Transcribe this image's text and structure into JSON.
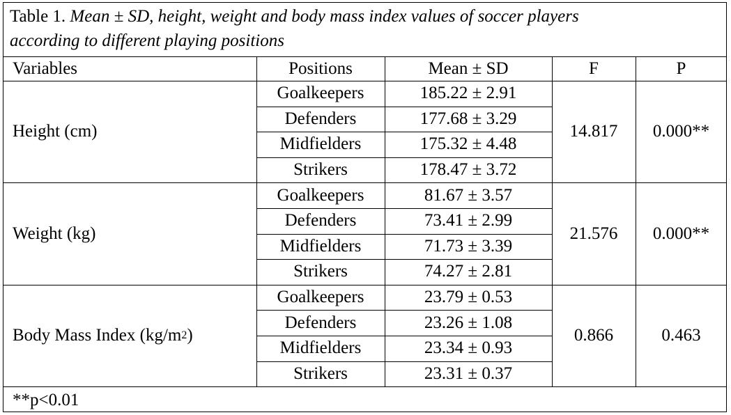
{
  "table": {
    "caption": {
      "label": "Table 1.",
      "text": "Mean ± SD, height, weight and body mass index values of soccer players according to different playing positions",
      "line1": "Mean ± SD, height, weight and body mass index values of soccer players",
      "line2": "according to different playing positions"
    },
    "headers": [
      "Variables",
      "Positions",
      "Mean ± SD",
      "F",
      "P"
    ],
    "groups": [
      {
        "variable": "Height (cm)",
        "f": "14.817",
        "p": "0.000**",
        "rows": [
          {
            "position": "Goalkeepers",
            "mean_sd": "185.22 ± 2.91"
          },
          {
            "position": "Defenders",
            "mean_sd": "177.68 ± 3.29"
          },
          {
            "position": "Midfielders",
            "mean_sd": "175.32 ± 4.48"
          },
          {
            "position": "Strikers",
            "mean_sd": "178.47 ± 3.72"
          }
        ]
      },
      {
        "variable": "Weight (kg)",
        "f": "21.576",
        "p": "0.000**",
        "rows": [
          {
            "position": "Goalkeepers",
            "mean_sd": "81.67 ± 3.57"
          },
          {
            "position": "Defenders",
            "mean_sd": "73.41 ± 2.99"
          },
          {
            "position": "Midfielders",
            "mean_sd": "71.73 ± 3.39"
          },
          {
            "position": "Strikers",
            "mean_sd": "74.27 ± 2.81"
          }
        ]
      },
      {
        "variable": "Body Mass Index (kg/m",
        "variable_sup": "2",
        "variable_suffix": ")",
        "f": "0.866",
        "p": "0.463",
        "rows": [
          {
            "position": "Goalkeepers",
            "mean_sd": "23.79 ± 0.53"
          },
          {
            "position": "Defenders",
            "mean_sd": "23.26 ± 1.08"
          },
          {
            "position": "Midfielders",
            "mean_sd": "23.34 ± 0.93"
          },
          {
            "position": "Strikers",
            "mean_sd": "23.31 ± 0.37"
          }
        ]
      }
    ],
    "footnote": "**p<0.01"
  }
}
